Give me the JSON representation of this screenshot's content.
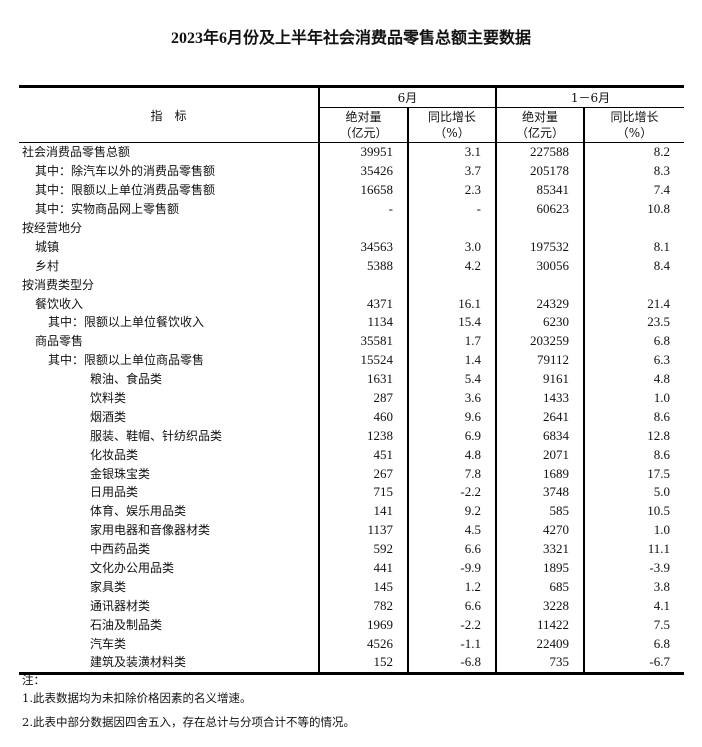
{
  "title": "2023年6月份及上半年社会消费品零售总额主要数据",
  "header": {
    "indicator": "指　标",
    "period1": "6月",
    "period2": "1－6月",
    "abs": "绝对量",
    "abs_unit": "（亿元）",
    "growth": "同比增长",
    "growth_unit": "（%）"
  },
  "rows": [
    {
      "label": "社会消费品零售总额",
      "level": 0,
      "v": [
        "39951",
        "3.1",
        "227588",
        "8.2"
      ]
    },
    {
      "label": "其中：除汽车以外的消费品零售额",
      "level": 1,
      "v": [
        "35426",
        "3.7",
        "205178",
        "8.3"
      ]
    },
    {
      "label": "其中：限额以上单位消费品零售额",
      "level": 1,
      "v": [
        "16658",
        "2.3",
        "85341",
        "7.4"
      ]
    },
    {
      "label": "其中：实物商品网上零售额",
      "level": 1,
      "v": [
        "-",
        "-",
        "60623",
        "10.8"
      ]
    },
    {
      "label": "按经营地分",
      "level": 0,
      "v": [
        "",
        "",
        "",
        ""
      ]
    },
    {
      "label": "城镇",
      "level": 1,
      "v": [
        "34563",
        "3.0",
        "197532",
        "8.1"
      ]
    },
    {
      "label": "乡村",
      "level": 1,
      "v": [
        "5388",
        "4.2",
        "30056",
        "8.4"
      ]
    },
    {
      "label": "按消费类型分",
      "level": 0,
      "v": [
        "",
        "",
        "",
        ""
      ]
    },
    {
      "label": "餐饮收入",
      "level": 1,
      "v": [
        "4371",
        "16.1",
        "24329",
        "21.4"
      ]
    },
    {
      "label": "其中：限额以上单位餐饮收入",
      "level": 2,
      "v": [
        "1134",
        "15.4",
        "6230",
        "23.5"
      ]
    },
    {
      "label": "商品零售",
      "level": 1,
      "v": [
        "35581",
        "1.7",
        "203259",
        "6.8"
      ]
    },
    {
      "label": "其中：限额以上单位商品零售",
      "level": 2,
      "v": [
        "15524",
        "1.4",
        "79112",
        "6.3"
      ]
    },
    {
      "label": "粮油、食品类",
      "level": 3,
      "v": [
        "1631",
        "5.4",
        "9161",
        "4.8"
      ]
    },
    {
      "label": "饮料类",
      "level": 3,
      "v": [
        "287",
        "3.6",
        "1433",
        "1.0"
      ]
    },
    {
      "label": "烟酒类",
      "level": 3,
      "v": [
        "460",
        "9.6",
        "2641",
        "8.6"
      ]
    },
    {
      "label": "服装、鞋帽、针纺织品类",
      "level": 3,
      "v": [
        "1238",
        "6.9",
        "6834",
        "12.8"
      ]
    },
    {
      "label": "化妆品类",
      "level": 3,
      "v": [
        "451",
        "4.8",
        "2071",
        "8.6"
      ]
    },
    {
      "label": "金银珠宝类",
      "level": 3,
      "v": [
        "267",
        "7.8",
        "1689",
        "17.5"
      ]
    },
    {
      "label": "日用品类",
      "level": 3,
      "v": [
        "715",
        "-2.2",
        "3748",
        "5.0"
      ]
    },
    {
      "label": "体育、娱乐用品类",
      "level": 3,
      "v": [
        "141",
        "9.2",
        "585",
        "10.5"
      ]
    },
    {
      "label": "家用电器和音像器材类",
      "level": 3,
      "v": [
        "1137",
        "4.5",
        "4270",
        "1.0"
      ]
    },
    {
      "label": "中西药品类",
      "level": 3,
      "v": [
        "592",
        "6.6",
        "3321",
        "11.1"
      ]
    },
    {
      "label": "文化办公用品类",
      "level": 3,
      "v": [
        "441",
        "-9.9",
        "1895",
        "-3.9"
      ]
    },
    {
      "label": "家具类",
      "level": 3,
      "v": [
        "145",
        "1.2",
        "685",
        "3.8"
      ]
    },
    {
      "label": "通讯器材类",
      "level": 3,
      "v": [
        "782",
        "6.6",
        "3228",
        "4.1"
      ]
    },
    {
      "label": "石油及制品类",
      "level": 3,
      "v": [
        "1969",
        "-2.2",
        "11422",
        "7.5"
      ]
    },
    {
      "label": "汽车类",
      "level": 3,
      "v": [
        "4526",
        "-1.1",
        "22409",
        "6.8"
      ]
    },
    {
      "label": "建筑及装潢材料类",
      "level": 3,
      "v": [
        "152",
        "-6.8",
        "735",
        "-6.7"
      ]
    }
  ],
  "notes": {
    "heading": "注：",
    "items": [
      "1.此表数据均为未扣除价格因素的名义增速。",
      "2.此表中部分数据因四舍五入，存在总计与分项合计不等的情况。"
    ]
  }
}
